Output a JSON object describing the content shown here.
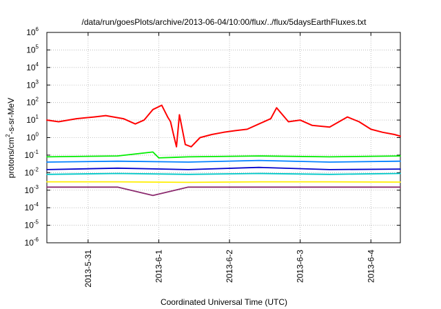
{
  "chart_data": {
    "type": "line",
    "title": "/data/run/goesPlots/archive/2013-06-04/10:00/flux/../flux/5daysEarthFluxes.txt",
    "xlabel": "Coordinated Universal Time (UTC)",
    "ylabel_parts": {
      "base": "protons/cm",
      "sup": "2",
      "rest": "-s-sr-MeV"
    },
    "yscale": "log",
    "ylim": [
      1e-06,
      1000000.0
    ],
    "y_ticks": [
      {
        "base": "10",
        "exp": "-6",
        "value": 1e-06
      },
      {
        "base": "10",
        "exp": "-5",
        "value": 1e-05
      },
      {
        "base": "10",
        "exp": "-4",
        "value": 0.0001
      },
      {
        "base": "10",
        "exp": "-3",
        "value": 0.001
      },
      {
        "base": "10",
        "exp": "-2",
        "value": 0.01
      },
      {
        "base": "10",
        "exp": "-1",
        "value": 0.1
      },
      {
        "base": "10",
        "exp": "0",
        "value": 1
      },
      {
        "base": "10",
        "exp": "1",
        "value": 10
      },
      {
        "base": "10",
        "exp": "2",
        "value": 100
      },
      {
        "base": "10",
        "exp": "3",
        "value": 1000
      },
      {
        "base": "10",
        "exp": "4",
        "value": 10000
      },
      {
        "base": "10",
        "exp": "5",
        "value": 100000
      },
      {
        "base": "10",
        "exp": "6",
        "value": 1000000
      }
    ],
    "xlim": [
      "2013-05-30T10:00",
      "2013-06-04T10:00"
    ],
    "x_ticks": [
      {
        "label": "2013-5-31",
        "value": "2013-05-31T00:00"
      },
      {
        "label": "2013-6-1",
        "value": "2013-06-01T00:00"
      },
      {
        "label": "2013-6-2",
        "value": "2013-06-02T00:00"
      },
      {
        "label": "2013-6-3",
        "value": "2013-06-03T00:00"
      },
      {
        "label": "2013-6-4",
        "value": "2013-06-04T00:00"
      }
    ],
    "grid": true,
    "series": [
      {
        "color": "#ff0000",
        "x": [
          "2013-05-30T10:00",
          "2013-05-30T14:00",
          "2013-05-30T20:00",
          "2013-05-31T02:00",
          "2013-05-31T06:00",
          "2013-05-31T12:00",
          "2013-05-31T16:00",
          "2013-05-31T19:00",
          "2013-05-31T22:00",
          "2013-06-01T01:00",
          "2013-06-01T03:00",
          "2013-06-01T04:00",
          "2013-06-01T05:00",
          "2013-06-01T06:00",
          "2013-06-01T07:00",
          "2013-06-01T09:00",
          "2013-06-01T11:00",
          "2013-06-01T14:00",
          "2013-06-01T18:00",
          "2013-06-01T22:00",
          "2013-06-02T02:00",
          "2013-06-02T06:00",
          "2013-06-02T10:00",
          "2013-06-02T14:00",
          "2013-06-02T16:00",
          "2013-06-02T20:00",
          "2013-06-03T00:00",
          "2013-06-03T04:00",
          "2013-06-03T10:00",
          "2013-06-03T16:00",
          "2013-06-03T20:00",
          "2013-06-04T00:00",
          "2013-06-04T04:00",
          "2013-06-04T08:00",
          "2013-06-04T10:00"
        ],
        "values": [
          10,
          8,
          12,
          15,
          18,
          12,
          6,
          10,
          40,
          70,
          15,
          8,
          1.5,
          0.3,
          20,
          0.4,
          0.3,
          1,
          1.5,
          2,
          2.5,
          3,
          6,
          12,
          50,
          8,
          10,
          5,
          4,
          15,
          8,
          3,
          2,
          1.5,
          1.2
        ]
      },
      {
        "color": "#00ee00",
        "x": [
          "2013-05-30T10:00",
          "2013-05-31T10:00",
          "2013-05-31T22:00",
          "2013-06-01T00:00",
          "2013-06-01T10:00",
          "2013-06-02T10:00",
          "2013-06-03T10:00",
          "2013-06-04T10:00"
        ],
        "values": [
          0.08,
          0.09,
          0.15,
          0.07,
          0.08,
          0.09,
          0.08,
          0.09
        ]
      },
      {
        "color": "#0080ff",
        "x": [
          "2013-05-30T10:00",
          "2013-05-31T10:00",
          "2013-06-01T10:00",
          "2013-06-02T10:00",
          "2013-06-03T10:00",
          "2013-06-04T10:00"
        ],
        "values": [
          0.04,
          0.045,
          0.04,
          0.05,
          0.04,
          0.045
        ]
      },
      {
        "color": "#0000cc",
        "x": [
          "2013-05-30T10:00",
          "2013-05-31T10:00",
          "2013-06-01T10:00",
          "2013-06-02T10:00",
          "2013-06-03T10:00",
          "2013-06-04T10:00"
        ],
        "values": [
          0.015,
          0.018,
          0.015,
          0.02,
          0.015,
          0.016
        ]
      },
      {
        "color": "#00c8c8",
        "x": [
          "2013-05-30T10:00",
          "2013-05-31T10:00",
          "2013-06-01T10:00",
          "2013-06-02T10:00",
          "2013-06-03T10:00",
          "2013-06-04T10:00"
        ],
        "values": [
          0.008,
          0.009,
          0.008,
          0.009,
          0.008,
          0.009
        ]
      },
      {
        "color": "#ffee00",
        "x": [
          "2013-05-30T10:00",
          "2013-05-31T10:00",
          "2013-06-01T10:00",
          "2013-06-02T10:00",
          "2013-06-03T10:00",
          "2013-06-04T10:00"
        ],
        "values": [
          0.003,
          0.003,
          0.0028,
          0.003,
          0.003,
          0.0029
        ]
      },
      {
        "color": "#8b2a6e",
        "x": [
          "2013-05-30T10:00",
          "2013-05-31T10:00",
          "2013-05-31T22:00",
          "2013-06-01T10:00",
          "2013-06-02T10:00",
          "2013-06-03T10:00",
          "2013-06-04T10:00"
        ],
        "values": [
          0.0015,
          0.0015,
          0.0005,
          0.0015,
          0.0015,
          0.0015,
          0.0015
        ]
      }
    ]
  }
}
